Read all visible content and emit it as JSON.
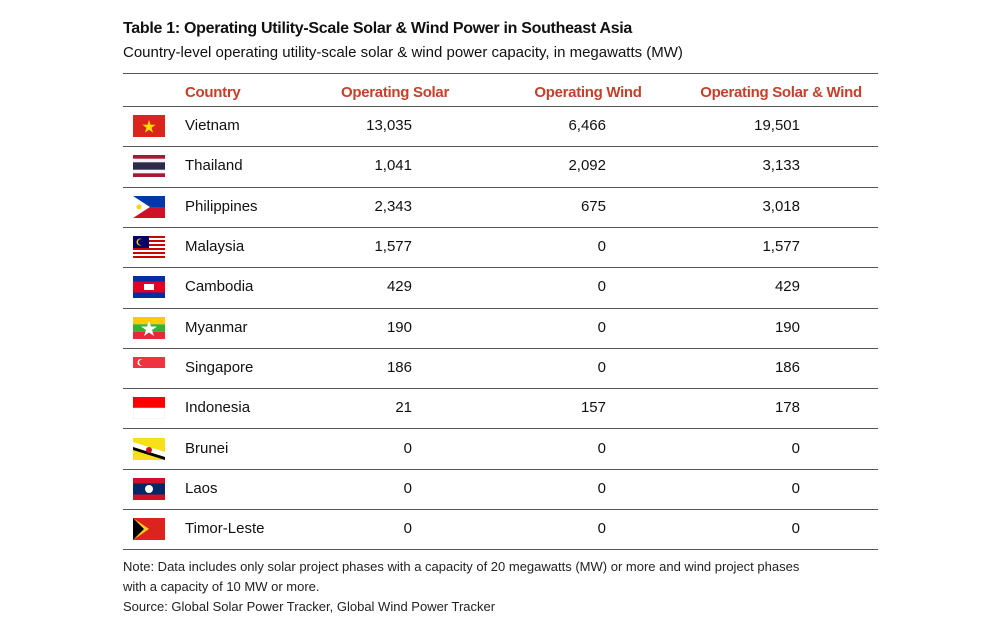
{
  "header": {
    "title": "Table 1: Operating Utility-Scale Solar & Wind Power in Southeast Asia",
    "subtitle": "Country-level operating utility-scale solar & wind power capacity, in megawatts (MW)"
  },
  "table": {
    "columns": [
      "Country",
      "Operating Solar",
      "Operating Wind",
      "Operating Solar & Wind"
    ],
    "rows": [
      [
        "Vietnam",
        "13,035",
        "6,466",
        "19,501"
      ],
      [
        "Thailand",
        "1,041",
        "2,092",
        "3,133"
      ],
      [
        "Philippines",
        "2,343",
        "675",
        "3,018"
      ],
      [
        "Malaysia",
        "1,577",
        "0",
        "1,577"
      ],
      [
        "Cambodia",
        "429",
        "0",
        "429"
      ],
      [
        "Myanmar",
        "190",
        "0",
        "190"
      ],
      [
        "Singapore",
        "186",
        "0",
        "186"
      ],
      [
        "Indonesia",
        "21",
        "157",
        "178"
      ],
      [
        "Brunei",
        "0",
        "0",
        "0"
      ],
      [
        "Laos",
        "0",
        "0",
        "0"
      ],
      [
        "Timor-Leste",
        "0",
        "0",
        "0"
      ]
    ]
  },
  "footer": {
    "note_line1": "Note: Data includes only solar project phases with a capacity of 20 megawatts (MW) or more and wind project phases",
    "note_line2": "with a capacity of 10 MW or more.",
    "source": "Source: Global Solar Power Tracker, Global Wind Power Tracker"
  }
}
